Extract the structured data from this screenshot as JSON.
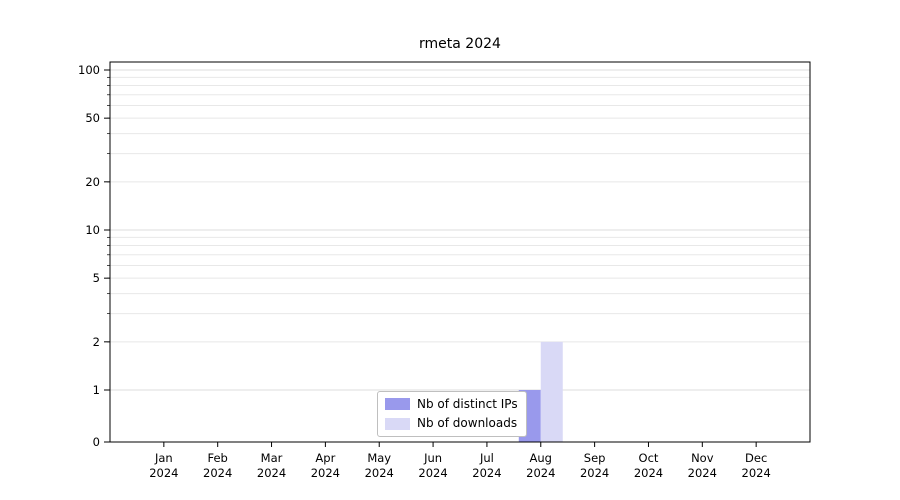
{
  "chart_data": {
    "type": "bar",
    "title": "rmeta 2024",
    "categories": [
      "Jan",
      "Feb",
      "Mar",
      "Apr",
      "May",
      "Jun",
      "Jul",
      "Aug",
      "Sep",
      "Oct",
      "Nov",
      "Dec"
    ],
    "x_tick_second_line": "2024",
    "series": [
      {
        "name": "Nb of distinct IPs",
        "color": "#9999ec",
        "values": [
          0,
          0,
          0,
          0,
          0,
          0,
          0,
          1,
          0,
          0,
          0,
          0
        ]
      },
      {
        "name": "Nb of downloads",
        "color": "#d9d9f6",
        "values": [
          0,
          0,
          0,
          0,
          0,
          0,
          0,
          2,
          0,
          0,
          0,
          0
        ]
      }
    ],
    "y_axis": {
      "scale": "symlog",
      "ticks": [
        0,
        1,
        2,
        5,
        10,
        20,
        50,
        100
      ],
      "range": [
        0,
        112
      ]
    },
    "grid": "horizontal-log-minor",
    "legend_position": "bottom-center",
    "colors": {
      "axis": "#000000",
      "grid_minor": "#e8e8e8",
      "grid_major": "#dedede",
      "tick_label": "#000000"
    }
  }
}
